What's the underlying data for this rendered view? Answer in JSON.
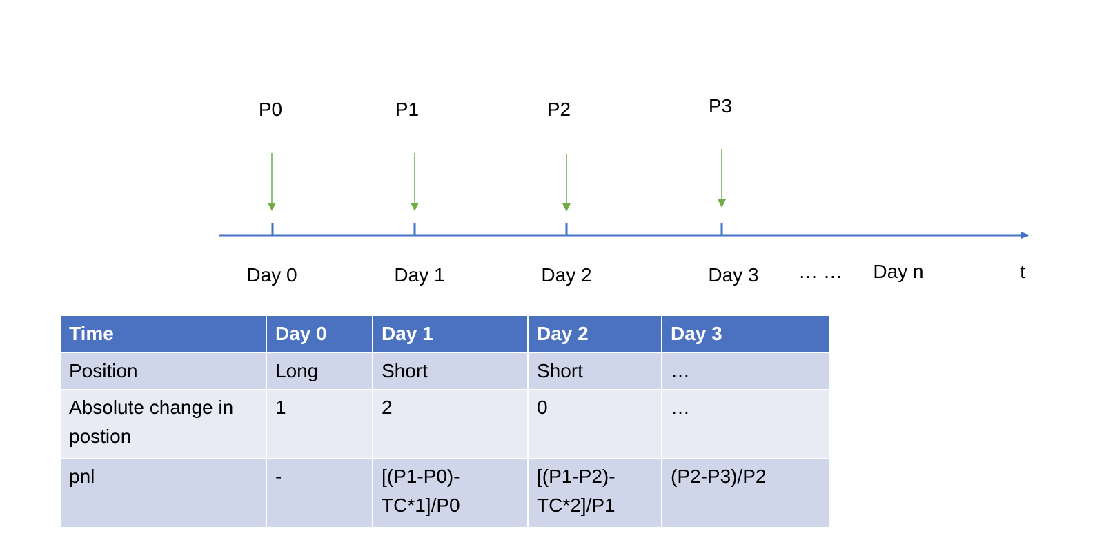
{
  "timeline": {
    "axis_color": "#4472c4",
    "arrow_color": "#70ad47",
    "prices": [
      "P0",
      "P1",
      "P2",
      "P3"
    ],
    "days": [
      "Day 0",
      "Day 1",
      "Day 2",
      "Day 3"
    ],
    "ellipsis": "… …",
    "last_day": "Day n",
    "axis_label": "t"
  },
  "table": {
    "header_color": "#4472c4",
    "columns": [
      "Time",
      "Day 0",
      "Day 1",
      "Day 2",
      "Day 3"
    ],
    "rows": [
      [
        "Position",
        "Long",
        "Short",
        "Short",
        "…"
      ],
      [
        "Absolute change in postion",
        "1",
        "2",
        "0",
        "…"
      ],
      [
        "pnl",
        "-",
        "[(P1-P0)-TC*1]/P0",
        "[(P1-P2)-TC*2]/P1",
        "(P2-P3)/P2"
      ]
    ]
  }
}
